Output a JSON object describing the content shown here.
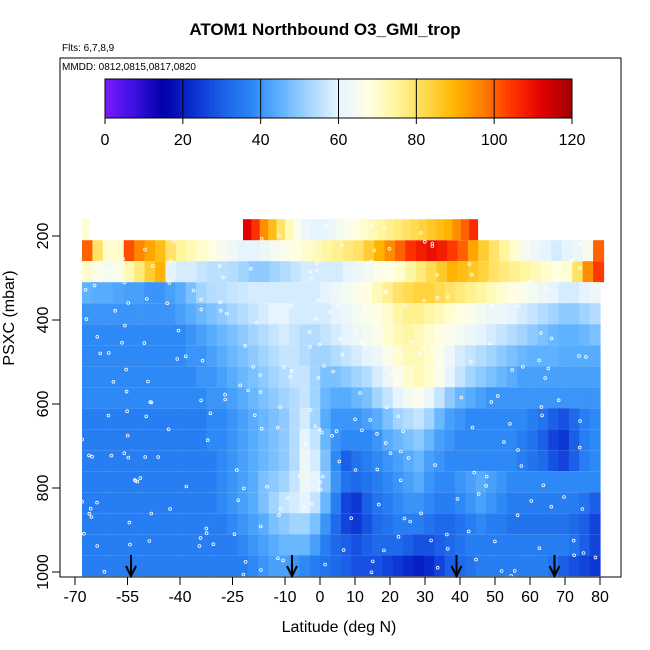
{
  "chart_data": {
    "type": "heatmap",
    "title": "ATOM1 Northbound O3_GMI_trop",
    "annotations": [
      "Flts: 6,7,8,9",
      "MMDD: 0812,0815,0817,0820"
    ],
    "xlabel": "Latitude (deg N)",
    "ylabel": "PSXC (mbar)",
    "xlim": [
      -70,
      80
    ],
    "ylim": [
      1000,
      120
    ],
    "y_reversed": true,
    "x_ticks": [
      -70,
      -55,
      -40,
      -25,
      -10,
      0,
      10,
      20,
      30,
      40,
      50,
      60,
      70,
      80
    ],
    "y_ticks": [
      200,
      400,
      600,
      800,
      1000
    ],
    "colorbar": {
      "min": 0,
      "max": 120,
      "ticks": [
        0,
        20,
        40,
        60,
        80,
        100,
        120
      ],
      "colors": [
        "#7a1cff",
        "#3b10e0",
        "#0000a8",
        "#0a2ed0",
        "#1b5ee8",
        "#2a86f5",
        "#5eb2ff",
        "#a6d6ff",
        "#e6f4ff",
        "#ffffe6",
        "#fff59a",
        "#ffd94d",
        "#ffb400",
        "#ff7a00",
        "#ff3000",
        "#e00000",
        "#a00000"
      ]
    },
    "arrows_latitude": [
      -54,
      -8,
      39,
      67
    ],
    "levels": [
      {
        "p": [
          160,
          210
        ],
        "range": [
          -68,
          -66
        ],
        "values": [
          70
        ]
      },
      {
        "p": [
          210,
          260
        ],
        "range": [
          -68,
          81
        ],
        "values": [
          100,
          80,
          70,
          70,
          102,
          96,
          92,
          88,
          80,
          75,
          72,
          70,
          68,
          65,
          62,
          60,
          60,
          62,
          64,
          66,
          68,
          70,
          72,
          74,
          76,
          78,
          80,
          85,
          90,
          95,
          100,
          105,
          108,
          110,
          108,
          104,
          100,
          92,
          85,
          80,
          75,
          70,
          65,
          62,
          60,
          58,
          60,
          62,
          65,
          100
        ]
      },
      {
        "p": [
          160,
          210
        ],
        "range": [
          -22,
          45
        ],
        "values": [
          112,
          105,
          95,
          88,
          80,
          72,
          66,
          62,
          60,
          60,
          62,
          64,
          66,
          68,
          70,
          72,
          74,
          76,
          78,
          80,
          82,
          84,
          86,
          88,
          90,
          95,
          100,
          106
        ]
      },
      {
        "p": [
          260,
          310
        ],
        "range": [
          -68,
          81
        ],
        "values": [
          70,
          66,
          64,
          66,
          72,
          78,
          85,
          90,
          60,
          58,
          58,
          56,
          55,
          55,
          54,
          52,
          50,
          50,
          52,
          54,
          56,
          58,
          58,
          58,
          58,
          60,
          62,
          64,
          66,
          68,
          70,
          74,
          78,
          82,
          86,
          90,
          88,
          86,
          84,
          80,
          78,
          76,
          74,
          72,
          70,
          68,
          70,
          80,
          95,
          104
        ]
      },
      {
        "p": [
          310,
          360
        ],
        "range": [
          -68,
          80
        ],
        "values": [
          45,
          44,
          44,
          43,
          42,
          42,
          40,
          40,
          42,
          44,
          48,
          52,
          54,
          55,
          56,
          57,
          58,
          58,
          58,
          58,
          58,
          58,
          58,
          60,
          62,
          64,
          66,
          68,
          72,
          76,
          80,
          82,
          84,
          84,
          82,
          80,
          78,
          76,
          74,
          72,
          70,
          68,
          66,
          64,
          62,
          60,
          58,
          58,
          60,
          62
        ]
      },
      {
        "p": [
          360,
          410
        ],
        "range": [
          -68,
          80
        ],
        "values": [
          40,
          40,
          40,
          40,
          40,
          40,
          40,
          40,
          40,
          42,
          44,
          46,
          48,
          50,
          52,
          54,
          56,
          58,
          60,
          60,
          58,
          58,
          58,
          58,
          60,
          62,
          64,
          66,
          68,
          70,
          74,
          76,
          76,
          74,
          72,
          70,
          68,
          66,
          64,
          62,
          62,
          60,
          58,
          56,
          54,
          52,
          50,
          50,
          52,
          54
        ]
      },
      {
        "p": [
          410,
          460
        ],
        "range": [
          -68,
          80
        ],
        "values": [
          38,
          38,
          38,
          38,
          38,
          38,
          38,
          38,
          38,
          38,
          40,
          42,
          44,
          46,
          48,
          50,
          52,
          54,
          56,
          58,
          56,
          54,
          54,
          56,
          58,
          60,
          62,
          64,
          66,
          70,
          72,
          74,
          72,
          70,
          68,
          66,
          64,
          62,
          60,
          58,
          56,
          54,
          52,
          50,
          48,
          46,
          45,
          45,
          46,
          48
        ]
      },
      {
        "p": [
          460,
          510
        ],
        "range": [
          -68,
          80
        ],
        "values": [
          38,
          38,
          38,
          38,
          38,
          38,
          38,
          38,
          38,
          38,
          40,
          40,
          42,
          44,
          46,
          48,
          50,
          52,
          54,
          56,
          56,
          54,
          52,
          52,
          54,
          56,
          58,
          60,
          62,
          66,
          70,
          72,
          72,
          70,
          66,
          62,
          58,
          56,
          54,
          52,
          50,
          48,
          46,
          45,
          45,
          45,
          44,
          44,
          44,
          44
        ]
      },
      {
        "p": [
          510,
          560
        ],
        "range": [
          -68,
          80
        ],
        "values": [
          38,
          38,
          38,
          38,
          38,
          38,
          38,
          38,
          38,
          38,
          38,
          40,
          40,
          42,
          44,
          46,
          48,
          50,
          52,
          54,
          56,
          56,
          52,
          48,
          48,
          50,
          52,
          54,
          58,
          62,
          66,
          70,
          72,
          70,
          66,
          60,
          56,
          52,
          50,
          48,
          46,
          44,
          42,
          42,
          42,
          42,
          42,
          42,
          42,
          42
        ]
      },
      {
        "p": [
          560,
          610
        ],
        "range": [
          -68,
          80
        ],
        "values": [
          38,
          38,
          38,
          38,
          38,
          38,
          38,
          38,
          38,
          38,
          38,
          38,
          40,
          40,
          42,
          44,
          46,
          48,
          50,
          52,
          54,
          56,
          52,
          46,
          44,
          44,
          46,
          48,
          52,
          56,
          60,
          64,
          66,
          62,
          56,
          50,
          46,
          44,
          42,
          40,
          40,
          40,
          40,
          40,
          40,
          40,
          40,
          40,
          40,
          40
        ]
      },
      {
        "p": [
          610,
          660
        ],
        "range": [
          -68,
          80
        ],
        "values": [
          36,
          36,
          36,
          36,
          36,
          36,
          36,
          36,
          36,
          36,
          36,
          36,
          38,
          38,
          40,
          42,
          44,
          46,
          48,
          50,
          54,
          58,
          52,
          44,
          40,
          40,
          40,
          42,
          44,
          48,
          52,
          54,
          56,
          52,
          46,
          42,
          40,
          38,
          38,
          38,
          38,
          38,
          38,
          36,
          34,
          30,
          28,
          32,
          36,
          38
        ]
      },
      {
        "p": [
          660,
          710
        ],
        "range": [
          -68,
          80
        ],
        "values": [
          36,
          36,
          36,
          36,
          36,
          36,
          36,
          36,
          36,
          36,
          36,
          36,
          38,
          38,
          40,
          42,
          44,
          46,
          48,
          50,
          54,
          60,
          56,
          46,
          40,
          38,
          38,
          38,
          40,
          44,
          46,
          48,
          50,
          46,
          42,
          40,
          38,
          38,
          38,
          38,
          38,
          38,
          36,
          34,
          30,
          26,
          24,
          30,
          36,
          38
        ]
      },
      {
        "p": [
          710,
          760
        ],
        "range": [
          -68,
          80
        ],
        "values": [
          36,
          36,
          36,
          36,
          36,
          36,
          36,
          36,
          36,
          36,
          36,
          36,
          36,
          38,
          40,
          42,
          44,
          46,
          48,
          50,
          54,
          62,
          58,
          48,
          38,
          30,
          34,
          36,
          38,
          40,
          42,
          44,
          46,
          42,
          40,
          38,
          38,
          38,
          38,
          38,
          38,
          38,
          36,
          34,
          32,
          28,
          26,
          30,
          36,
          38
        ]
      },
      {
        "p": [
          760,
          810
        ],
        "range": [
          -68,
          80
        ],
        "values": [
          36,
          36,
          36,
          36,
          36,
          36,
          36,
          36,
          36,
          36,
          36,
          36,
          36,
          38,
          40,
          42,
          44,
          48,
          50,
          52,
          56,
          62,
          60,
          50,
          40,
          34,
          32,
          34,
          36,
          38,
          40,
          42,
          44,
          40,
          38,
          38,
          40,
          42,
          44,
          42,
          40,
          38,
          38,
          38,
          38,
          38,
          38,
          38,
          38,
          38
        ]
      },
      {
        "p": [
          810,
          860
        ],
        "range": [
          -68,
          80
        ],
        "values": [
          36,
          36,
          36,
          36,
          36,
          36,
          36,
          36,
          36,
          36,
          36,
          36,
          36,
          38,
          40,
          42,
          44,
          48,
          52,
          56,
          58,
          60,
          56,
          46,
          36,
          26,
          24,
          30,
          34,
          36,
          38,
          40,
          40,
          38,
          36,
          36,
          38,
          40,
          42,
          40,
          38,
          36,
          36,
          36,
          36,
          36,
          36,
          36,
          34,
          30
        ]
      },
      {
        "p": [
          860,
          910
        ],
        "range": [
          -68,
          80
        ],
        "values": [
          36,
          36,
          36,
          36,
          36,
          36,
          36,
          36,
          36,
          36,
          36,
          36,
          36,
          36,
          38,
          40,
          42,
          44,
          48,
          50,
          52,
          52,
          48,
          40,
          32,
          26,
          24,
          28,
          32,
          34,
          36,
          36,
          36,
          34,
          32,
          32,
          34,
          36,
          38,
          36,
          36,
          34,
          34,
          34,
          34,
          34,
          34,
          32,
          30,
          26
        ]
      },
      {
        "p": [
          910,
          960
        ],
        "range": [
          -68,
          80
        ],
        "values": [
          36,
          36,
          36,
          36,
          36,
          36,
          36,
          36,
          36,
          36,
          36,
          36,
          36,
          36,
          36,
          38,
          40,
          42,
          44,
          46,
          46,
          46,
          42,
          36,
          32,
          30,
          28,
          30,
          32,
          32,
          32,
          30,
          28,
          28,
          30,
          32,
          34,
          36,
          36,
          36,
          36,
          36,
          36,
          36,
          36,
          36,
          36,
          34,
          30,
          26
        ]
      },
      {
        "p": [
          960,
          1010
        ],
        "range": [
          -68,
          80
        ],
        "values": [
          36,
          36,
          36,
          36,
          36,
          36,
          36,
          36,
          36,
          36,
          36,
          36,
          36,
          36,
          36,
          36,
          38,
          40,
          42,
          42,
          40,
          38,
          36,
          34,
          32,
          30,
          28,
          28,
          28,
          26,
          24,
          22,
          20,
          22,
          26,
          30,
          32,
          34,
          36,
          36,
          36,
          36,
          36,
          36,
          36,
          34,
          30,
          28,
          26,
          24
        ]
      }
    ]
  }
}
